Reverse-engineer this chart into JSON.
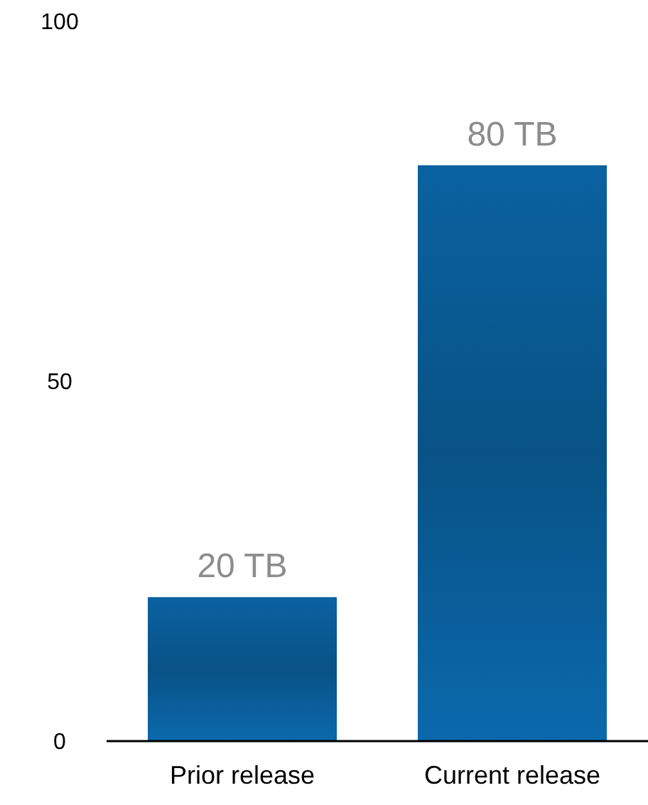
{
  "chart_data": {
    "type": "bar",
    "categories": [
      "Prior release",
      "Current release"
    ],
    "values": [
      20,
      80
    ],
    "value_labels": [
      "20 TB",
      "80 TB"
    ],
    "color": "#0a62a0",
    "ylim": [
      0,
      100
    ],
    "yticks": [
      0,
      50,
      100
    ],
    "grid": false
  }
}
